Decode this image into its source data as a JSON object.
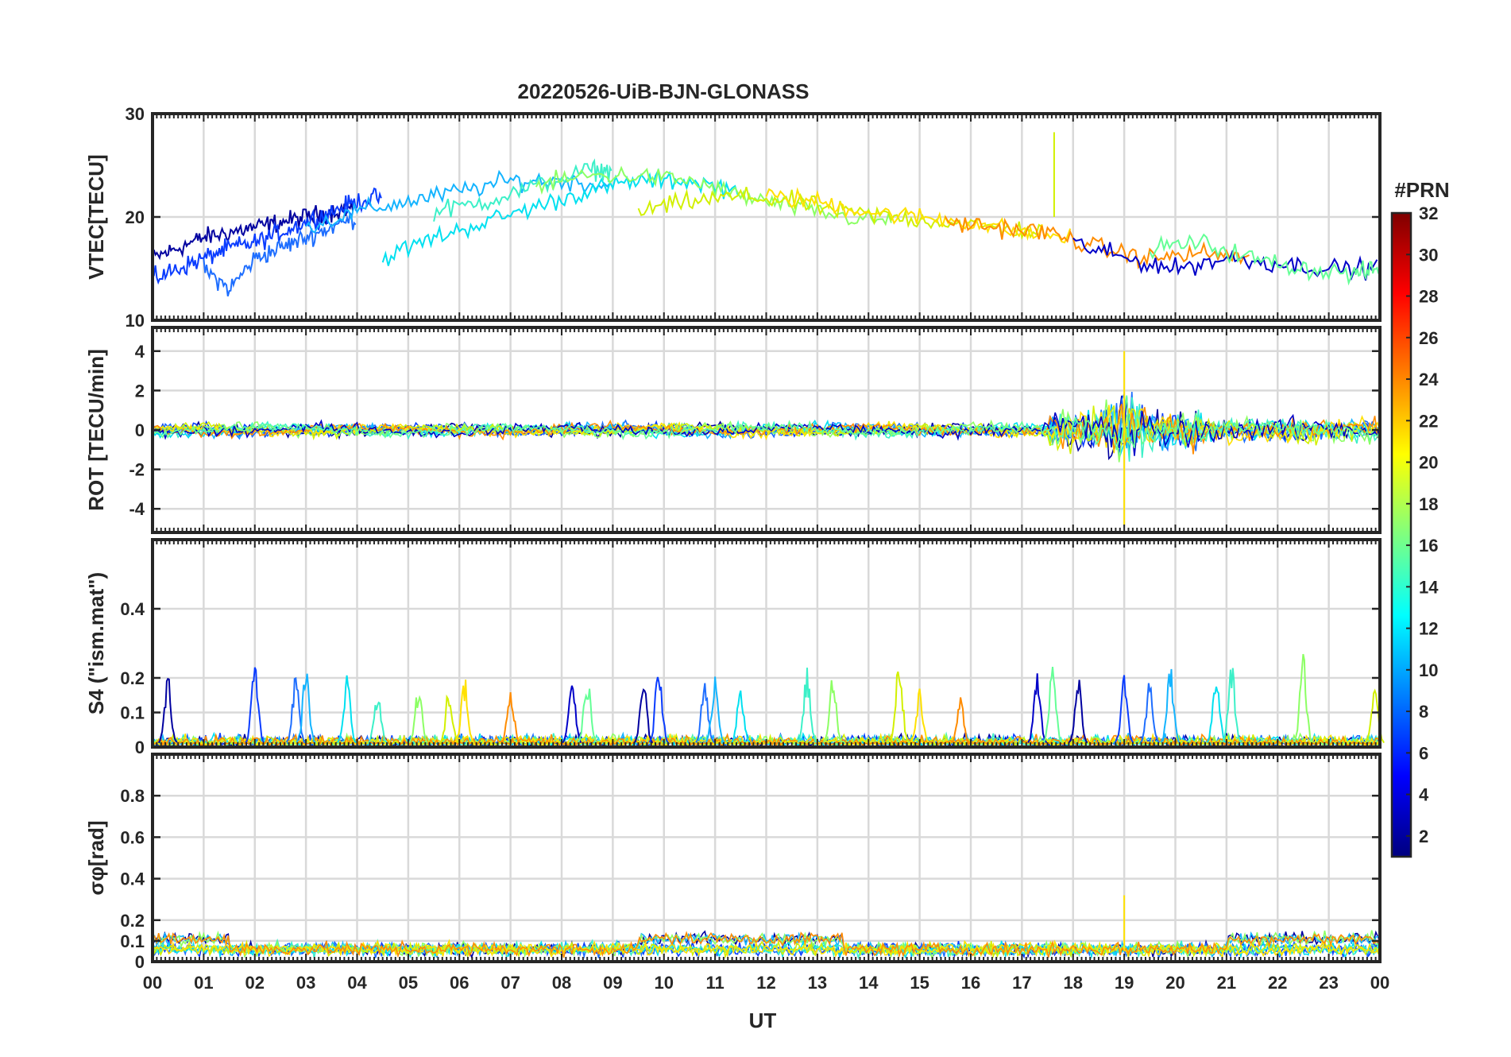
{
  "chart_data": [
    {
      "type": "line",
      "title": "20220526-UiB-BJN-GLONASS",
      "xlabel": "",
      "ylabel": "VTEC[TECU]",
      "xlim": [
        0,
        24
      ],
      "ylim": [
        10,
        30
      ],
      "yticks": [
        10,
        20,
        30
      ],
      "grid": true,
      "series_shape": [
        {
          "x": [
            0.0,
            0.5,
            1.0,
            1.5,
            2.0,
            2.5,
            3.0,
            3.5,
            4.0
          ],
          "y": [
            16,
            17,
            18,
            18.5,
            19,
            19.5,
            20,
            20.5,
            21
          ]
        },
        {
          "x": [
            0.0,
            0.5,
            1.0,
            1.5,
            2.0,
            2.5,
            3.0,
            3.5,
            4.0,
            4.5
          ],
          "y": [
            14,
            15,
            16,
            17,
            17.5,
            18.5,
            19.5,
            20.5,
            21.5,
            22
          ]
        },
        {
          "x": [
            1.0,
            1.5,
            2.0,
            2.5,
            3.0,
            3.5,
            4.0
          ],
          "y": [
            15,
            13,
            16,
            17,
            18,
            19,
            20
          ]
        },
        {
          "x": [
            3.0,
            4.0,
            5.0,
            6.0,
            7.0,
            8.0,
            9.0
          ],
          "y": [
            19,
            20.5,
            21.5,
            22.5,
            23.5,
            23.5,
            23
          ]
        },
        {
          "x": [
            4.5,
            5.5,
            6.5,
            7.5,
            8.5,
            9.5,
            10.5,
            11.5
          ],
          "y": [
            16,
            18,
            19.5,
            21,
            22.5,
            23.5,
            23.5,
            22.5
          ]
        },
        {
          "x": [
            5.5,
            6.5,
            7.5,
            8.5,
            9.0
          ],
          "y": [
            20.5,
            21.5,
            23,
            24.5,
            24.5
          ]
        },
        {
          "x": [
            7.5,
            8.5,
            9.5,
            10.5,
            11.5,
            12.5,
            13.5,
            14.5
          ],
          "y": [
            23,
            24,
            24,
            23.5,
            22,
            21,
            20,
            19.5
          ]
        },
        {
          "x": [
            9.5,
            10.5,
            11.5,
            12.5,
            13.5,
            14.5,
            15.5,
            16.5,
            17.5
          ],
          "y": [
            20.5,
            21.5,
            22,
            21.5,
            20.5,
            20,
            19.5,
            19,
            18.5
          ]
        },
        {
          "x": [
            12.0,
            13.0,
            14.0,
            15.0,
            16.0,
            17.0,
            18.0
          ],
          "y": [
            22,
            21.5,
            20.5,
            20,
            19.5,
            18.5,
            18
          ]
        },
        {
          "x": [
            15.5,
            16.5,
            17.5,
            18.5,
            19.5,
            20.5,
            21.5
          ],
          "y": [
            19.5,
            19,
            18.5,
            17,
            16,
            16.5,
            16
          ]
        },
        {
          "x": [
            18.0,
            19.0,
            20.0,
            21.0,
            22.0,
            23.0,
            24.0
          ],
          "y": [
            17.5,
            16,
            15,
            16,
            15.5,
            15,
            15
          ]
        },
        {
          "x": [
            19.5,
            20.5,
            21.5,
            22.5,
            23.5,
            24.0
          ],
          "y": [
            17,
            17.5,
            16,
            15,
            14.5,
            15
          ]
        }
      ]
    },
    {
      "type": "line",
      "title": "",
      "xlabel": "",
      "ylabel": "ROT [TECU/min]",
      "xlim": [
        0,
        24
      ],
      "ylim": [
        -5.2,
        5.2
      ],
      "yticks": [
        -4,
        -2,
        0,
        2,
        4
      ],
      "grid": true
    },
    {
      "type": "line",
      "title": "",
      "xlabel": "",
      "ylabel": "S4 (\"ism.mat\")",
      "xlim": [
        0,
        24
      ],
      "ylim": [
        0,
        0.6
      ],
      "yticks": [
        0,
        0.1,
        0.2,
        0.4
      ],
      "grid": true,
      "spikes": [
        {
          "x": 0.3,
          "y": 0.2
        },
        {
          "x": 2.0,
          "y": 0.26
        },
        {
          "x": 2.8,
          "y": 0.22
        },
        {
          "x": 3.0,
          "y": 0.23
        },
        {
          "x": 3.8,
          "y": 0.2
        },
        {
          "x": 4.4,
          "y": 0.17
        },
        {
          "x": 5.2,
          "y": 0.18
        },
        {
          "x": 5.8,
          "y": 0.18
        },
        {
          "x": 6.1,
          "y": 0.2
        },
        {
          "x": 7.0,
          "y": 0.18
        },
        {
          "x": 8.2,
          "y": 0.21
        },
        {
          "x": 8.5,
          "y": 0.21
        },
        {
          "x": 9.6,
          "y": 0.19
        },
        {
          "x": 9.9,
          "y": 0.26
        },
        {
          "x": 10.8,
          "y": 0.2
        },
        {
          "x": 11.0,
          "y": 0.22
        },
        {
          "x": 11.5,
          "y": 0.18
        },
        {
          "x": 12.8,
          "y": 0.23
        },
        {
          "x": 13.3,
          "y": 0.22
        },
        {
          "x": 14.6,
          "y": 0.27
        },
        {
          "x": 15.0,
          "y": 0.17
        },
        {
          "x": 15.8,
          "y": 0.14
        },
        {
          "x": 17.3,
          "y": 0.23
        },
        {
          "x": 17.6,
          "y": 0.23
        },
        {
          "x": 18.1,
          "y": 0.2
        },
        {
          "x": 19.0,
          "y": 0.2
        },
        {
          "x": 19.5,
          "y": 0.19
        },
        {
          "x": 19.9,
          "y": 0.24
        },
        {
          "x": 20.8,
          "y": 0.24
        },
        {
          "x": 21.1,
          "y": 0.24
        },
        {
          "x": 22.5,
          "y": 0.27
        },
        {
          "x": 23.9,
          "y": 0.2
        }
      ]
    },
    {
      "type": "line",
      "title": "",
      "xlabel": "UT",
      "ylabel": "σφ[rad]",
      "xlim": [
        0,
        24
      ],
      "ylim": [
        0,
        1
      ],
      "yticks": [
        0,
        0.1,
        0.2,
        0.4,
        0.6,
        0.8
      ],
      "xtick_labels": [
        "00",
        "01",
        "02",
        "03",
        "04",
        "05",
        "06",
        "07",
        "08",
        "09",
        "10",
        "11",
        "12",
        "13",
        "14",
        "15",
        "16",
        "17",
        "18",
        "19",
        "20",
        "21",
        "22",
        "23",
        "00"
      ],
      "grid": true
    }
  ],
  "colorbar": {
    "title": "#PRN",
    "range": [
      1,
      32
    ],
    "ticks": [
      2,
      4,
      6,
      8,
      10,
      12,
      14,
      16,
      18,
      20,
      22,
      24,
      26,
      28,
      30,
      32
    ],
    "colormap": "jet",
    "colors": [
      "#00007f",
      "#0000ff",
      "#007fff",
      "#00ffff",
      "#7fff7f",
      "#ffff00",
      "#ff7f00",
      "#ff0000",
      "#7f0000"
    ]
  },
  "series_colors": [
    "#0000a0",
    "#0a3cff",
    "#1e6eff",
    "#14b4ff",
    "#00e0f0",
    "#3cf0c8",
    "#8cff64",
    "#d2f000",
    "#ffe100",
    "#ff8c00",
    "#0000c8",
    "#64ff96"
  ]
}
